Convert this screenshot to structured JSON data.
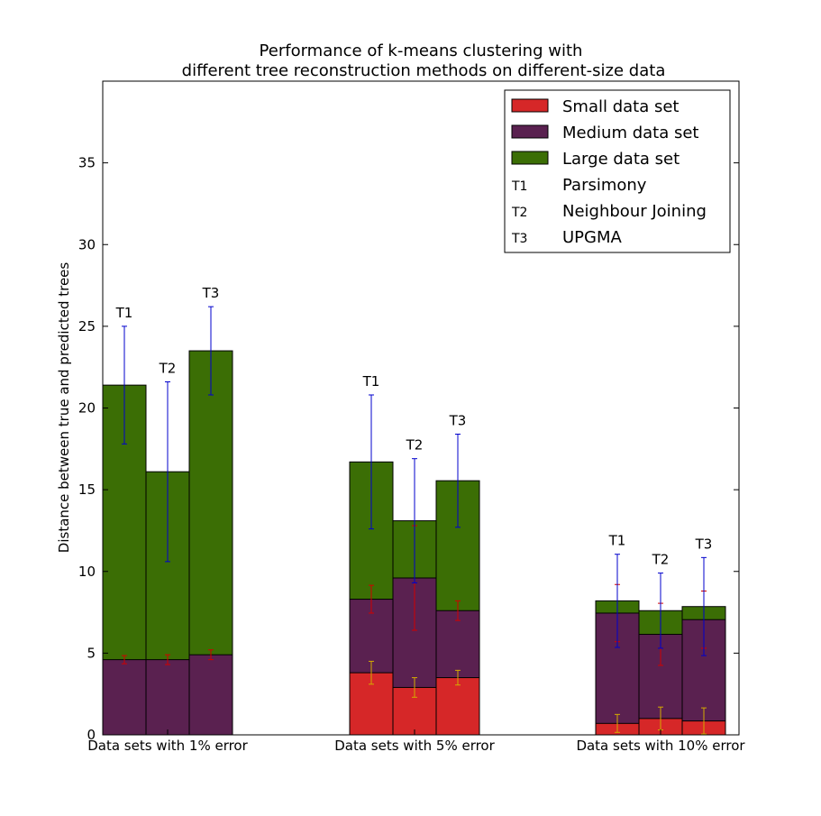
{
  "chart_data": {
    "type": "bar",
    "stacked": true,
    "title": "Performance of k-means clustering with",
    "subtitle": "different tree reconstruction methods on different-size data",
    "xlabel": "",
    "ylabel": "Distance between true and predicted trees",
    "ylim": [
      0,
      40
    ],
    "yticks": [
      0,
      5,
      10,
      15,
      20,
      25,
      30,
      35
    ],
    "grid": false,
    "legend_position": "top-right",
    "groups": [
      "Data sets with 1% error",
      "Data sets with 5% error",
      "Data sets with 10% error"
    ],
    "methods": [
      "T1",
      "T2",
      "T3"
    ],
    "series": [
      {
        "name": "Small data set",
        "color": "#d62728",
        "values": [
          [
            0,
            0,
            0
          ],
          [
            3.8,
            2.9,
            3.5
          ],
          [
            0.7,
            1.0,
            0.85
          ]
        ],
        "error": [
          [
            0,
            0,
            0
          ],
          [
            0.7,
            0.6,
            0.45
          ],
          [
            0.55,
            0.7,
            0.8
          ]
        ],
        "error_color": "#d4aa00"
      },
      {
        "name": "Medium data set",
        "color": "#5a2150",
        "values": [
          [
            4.6,
            4.6,
            4.9
          ],
          [
            8.3,
            9.6,
            7.6
          ],
          [
            7.45,
            6.15,
            7.05
          ]
        ],
        "error": [
          [
            0.25,
            0.3,
            0.3
          ],
          [
            0.85,
            3.2,
            0.6
          ],
          [
            1.75,
            1.9,
            1.75
          ]
        ],
        "error_color": "#d00000"
      },
      {
        "name": "Large data set",
        "color": "#3b6e05",
        "values": [
          [
            21.4,
            16.1,
            23.5
          ],
          [
            16.7,
            13.1,
            15.55
          ],
          [
            8.2,
            7.6,
            7.85
          ]
        ],
        "error": [
          [
            3.6,
            5.5,
            2.7
          ],
          [
            4.1,
            3.8,
            2.85
          ],
          [
            2.85,
            2.3,
            3.0
          ]
        ],
        "error_color": "#0000cc"
      }
    ],
    "method_legend": [
      {
        "code": "T1",
        "name": "Parsimony"
      },
      {
        "code": "T2",
        "name": "Neighbour Joining"
      },
      {
        "code": "T3",
        "name": "UPGMA"
      }
    ]
  }
}
